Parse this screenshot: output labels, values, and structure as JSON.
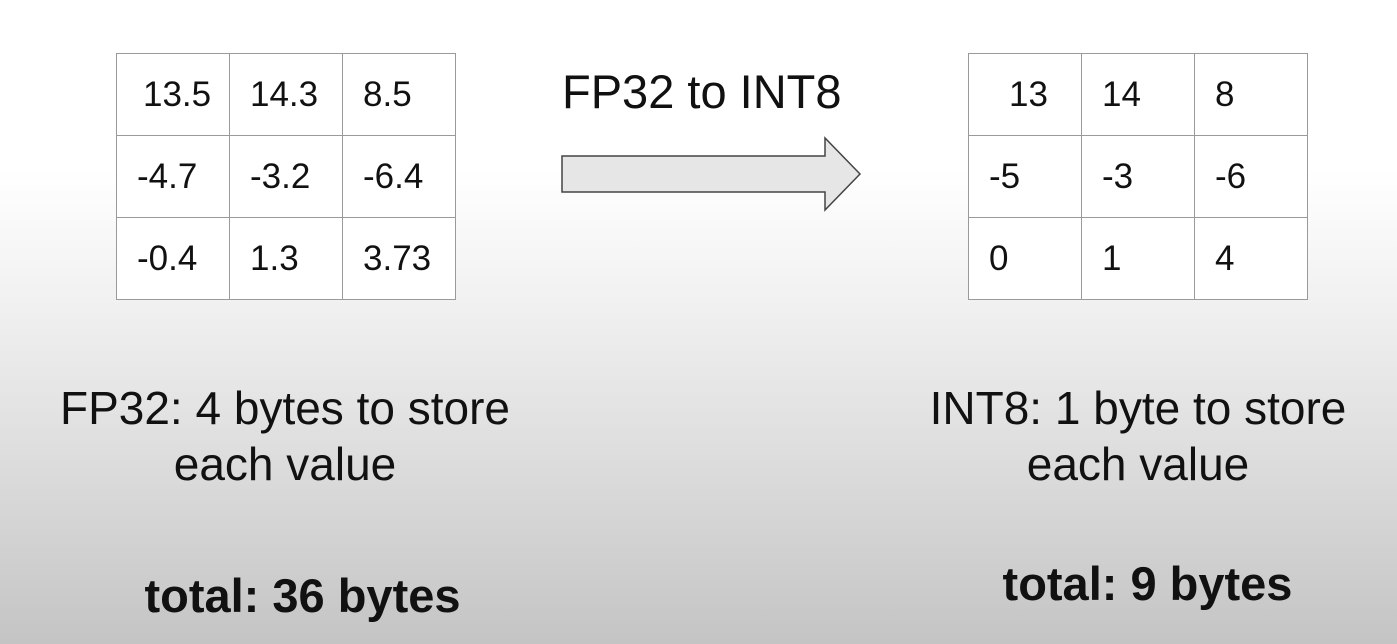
{
  "left_matrix": {
    "rows": [
      [
        "13.5",
        "14.3",
        "8.5"
      ],
      [
        "-4.7",
        "-3.2",
        "-6.4"
      ],
      [
        "-0.4",
        "1.3",
        "3.73"
      ]
    ]
  },
  "right_matrix": {
    "rows": [
      [
        "13",
        "14",
        "8"
      ],
      [
        "-5",
        "-3",
        "-6"
      ],
      [
        "0",
        "1",
        "4"
      ]
    ]
  },
  "arrow": {
    "label": "FP32 to INT8",
    "fill_color": "#e6e6e6",
    "stroke_color": "#444444"
  },
  "left_caption": {
    "line1": "FP32: 4 bytes to store",
    "line2": "each value",
    "total": "total: 36 bytes"
  },
  "right_caption": {
    "line1": "INT8: 1 byte to store",
    "line2": "each value",
    "total": "total: 9 bytes"
  }
}
